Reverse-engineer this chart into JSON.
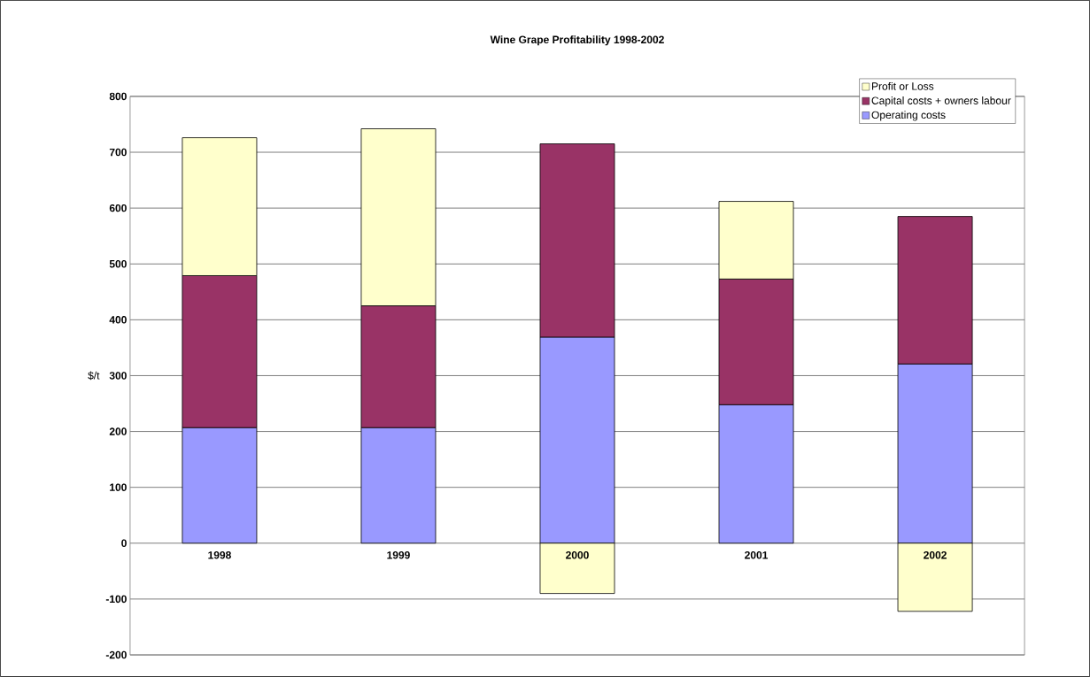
{
  "chart_data": {
    "type": "bar",
    "title": "Wine Grape Profitability 1998-2002",
    "ylabel": "$/t",
    "stacked": true,
    "categories": [
      "1998",
      "1999",
      "2000",
      "2001",
      "2002"
    ],
    "series": [
      {
        "name": "Operating costs",
        "color": "#9999ff",
        "values": [
          207,
          207,
          369,
          248,
          321
        ]
      },
      {
        "name": "Capital costs + owners labour",
        "color": "#993366",
        "values": [
          272,
          218,
          346,
          225,
          264
        ]
      },
      {
        "name": "Profit or Loss",
        "color": "#ffffcc",
        "values": [
          247,
          317,
          -90,
          139,
          -122
        ]
      }
    ],
    "ylim": [
      -200,
      800
    ],
    "yticks": [
      -200,
      -100,
      0,
      100,
      200,
      300,
      400,
      500,
      600,
      700,
      800
    ],
    "grid": "y",
    "legend": "top right"
  }
}
